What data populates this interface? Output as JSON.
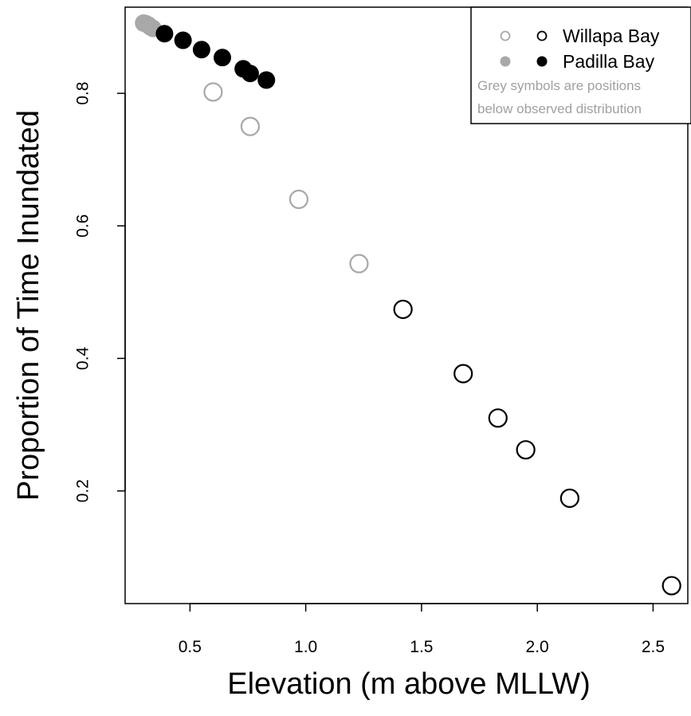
{
  "chart_data": {
    "type": "scatter",
    "title": "",
    "xlabel": "Elevation (m above MLLW)",
    "ylabel": "Proportion of Time Inundated",
    "xlim": [
      0.22,
      2.65
    ],
    "ylim": [
      0.03,
      0.93
    ],
    "x_ticks": [
      0.5,
      1.0,
      1.5,
      2.0,
      2.5
    ],
    "x_tick_labels": [
      "0.5",
      "1.0",
      "1.5",
      "2.0",
      "2.5"
    ],
    "y_ticks": [
      0.2,
      0.4,
      0.6,
      0.8
    ],
    "y_tick_labels": [
      "0.2",
      "0.4",
      "0.6",
      "0.8"
    ],
    "grid": false,
    "legend_position": "top-right",
    "series": [
      {
        "name": "Willapa Bay",
        "marker": "open-circle",
        "color": "#000000",
        "below_color": "#a8a8a8",
        "points": [
          {
            "x": 0.6,
            "y": 0.802,
            "below": true
          },
          {
            "x": 0.76,
            "y": 0.75,
            "below": true
          },
          {
            "x": 0.97,
            "y": 0.64,
            "below": true
          },
          {
            "x": 1.23,
            "y": 0.543,
            "below": true
          },
          {
            "x": 1.42,
            "y": 0.474,
            "below": false
          },
          {
            "x": 1.68,
            "y": 0.377,
            "below": false
          },
          {
            "x": 1.83,
            "y": 0.31,
            "below": false
          },
          {
            "x": 1.95,
            "y": 0.262,
            "below": false
          },
          {
            "x": 2.14,
            "y": 0.189,
            "below": false
          },
          {
            "x": 2.58,
            "y": 0.057,
            "below": false
          }
        ]
      },
      {
        "name": "Padilla Bay",
        "marker": "filled-circle",
        "color": "#000000",
        "below_color": "#a8a8a8",
        "points": [
          {
            "x": 0.3,
            "y": 0.906,
            "below": true
          },
          {
            "x": 0.31,
            "y": 0.905,
            "below": true
          },
          {
            "x": 0.32,
            "y": 0.903,
            "below": true
          },
          {
            "x": 0.33,
            "y": 0.9,
            "below": true
          },
          {
            "x": 0.34,
            "y": 0.898,
            "below": true
          },
          {
            "x": 0.39,
            "y": 0.89,
            "below": false
          },
          {
            "x": 0.47,
            "y": 0.88,
            "below": false
          },
          {
            "x": 0.55,
            "y": 0.866,
            "below": false
          },
          {
            "x": 0.64,
            "y": 0.854,
            "below": false
          },
          {
            "x": 0.73,
            "y": 0.837,
            "below": false
          },
          {
            "x": 0.76,
            "y": 0.83,
            "below": false
          },
          {
            "x": 0.83,
            "y": 0.82,
            "below": false
          }
        ]
      }
    ],
    "legend_note": [
      "Grey symbols are positions",
      "below observed distribution"
    ]
  }
}
